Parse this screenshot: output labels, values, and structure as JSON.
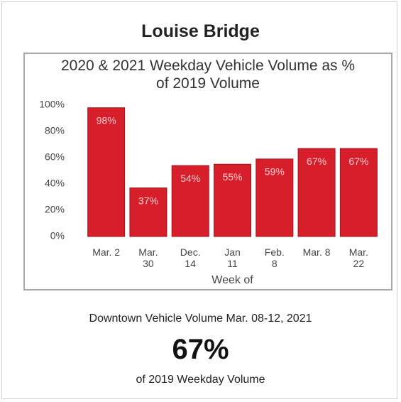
{
  "title": "Louise Bridge",
  "chart_data": {
    "type": "bar",
    "title": "2020 & 2021 Weekday Vehicle Volume as %\nof 2019 Volume",
    "x_label": "Week of",
    "categories": [
      "Mar. 2",
      "Mar.\n30",
      "Dec.\n14",
      "Jan\n11",
      "Feb.\n8",
      "Mar. 8",
      "Mar.\n22"
    ],
    "values": [
      98,
      37,
      54,
      55,
      59,
      67,
      67
    ],
    "value_labels": [
      "98%",
      "37%",
      "54%",
      "55%",
      "59%",
      "67%",
      "67%"
    ],
    "color": "#d71e2b",
    "ylim": [
      0,
      100
    ],
    "yticks": [
      {
        "value": 0,
        "label": "0%"
      },
      {
        "value": 20,
        "label": "20%"
      },
      {
        "value": 40,
        "label": "40%"
      },
      {
        "value": 60,
        "label": "60%"
      },
      {
        "value": 80,
        "label": "80%"
      },
      {
        "value": 100,
        "label": "100%"
      }
    ],
    "grid": false
  },
  "summary": {
    "heading": "Downtown Vehicle Volume Mar. 08-12, 2021",
    "value": "67%",
    "caption": "of 2019 Weekday Volume"
  }
}
